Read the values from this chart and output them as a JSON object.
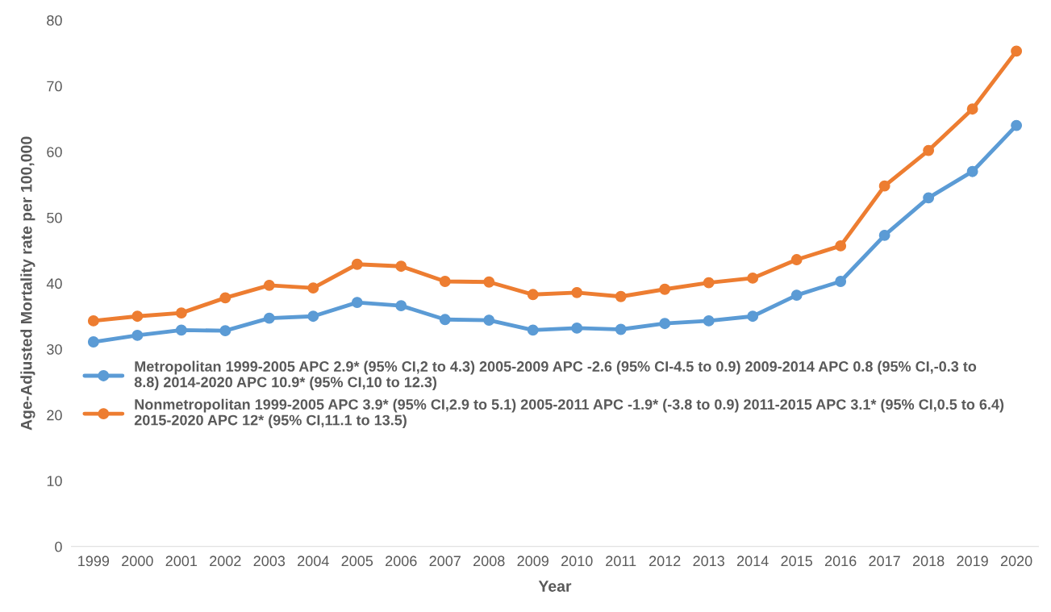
{
  "chart_data": {
    "type": "line",
    "xlabel": "Year",
    "ylabel": "Age-Adjusted Mortality rate per 100,000",
    "categories": [
      "1999",
      "2000",
      "2001",
      "2002",
      "2003",
      "2004",
      "2005",
      "2006",
      "2007",
      "2008",
      "2009",
      "2010",
      "2011",
      "2012",
      "2013",
      "2014",
      "2015",
      "2016",
      "2017",
      "2018",
      "2019",
      "2020"
    ],
    "series": [
      {
        "name": "Metropolitan 1999-2005 APC 2.9* (95% CI,2 to 4.3) 2005-2009 APC -2.6 (95% CI-4.5 to 0.9) 2009-2014 APC 0.8 (95% CI,-0.3 to 8.8) 2014-2020 APC 10.9* (95% CI,10 to 12.3)",
        "color": "#5b9bd5",
        "values": [
          31.1,
          32.1,
          32.9,
          32.8,
          34.7,
          35.0,
          37.1,
          36.6,
          34.5,
          34.4,
          32.9,
          33.2,
          33.0,
          33.9,
          34.3,
          35.0,
          38.2,
          40.3,
          47.3,
          53.0,
          57.0,
          64.0
        ]
      },
      {
        "name": "Nonmetropolitan 1999-2005 APC 3.9* (95% CI,2.9 to 5.1) 2005-2011 APC -1.9* (-3.8 to 0.9) 2011-2015 APC 3.1* (95% CI,0.5 to 6.4) 2015-2020 APC 12* (95% CI,11.1 to 13.5)",
        "color": "#ed7d31",
        "values": [
          34.3,
          35.0,
          35.5,
          37.8,
          39.7,
          39.3,
          42.9,
          42.6,
          40.3,
          40.2,
          38.3,
          38.6,
          38.0,
          39.1,
          40.1,
          40.8,
          43.6,
          45.7,
          54.8,
          60.2,
          66.5,
          75.3
        ]
      }
    ],
    "ylim": [
      0,
      80
    ],
    "yticks": [
      0,
      10,
      20,
      30,
      40,
      50,
      60,
      70,
      80
    ],
    "grid": false,
    "legend": "bottom left",
    "marker": "circle",
    "line_style": "solid"
  }
}
